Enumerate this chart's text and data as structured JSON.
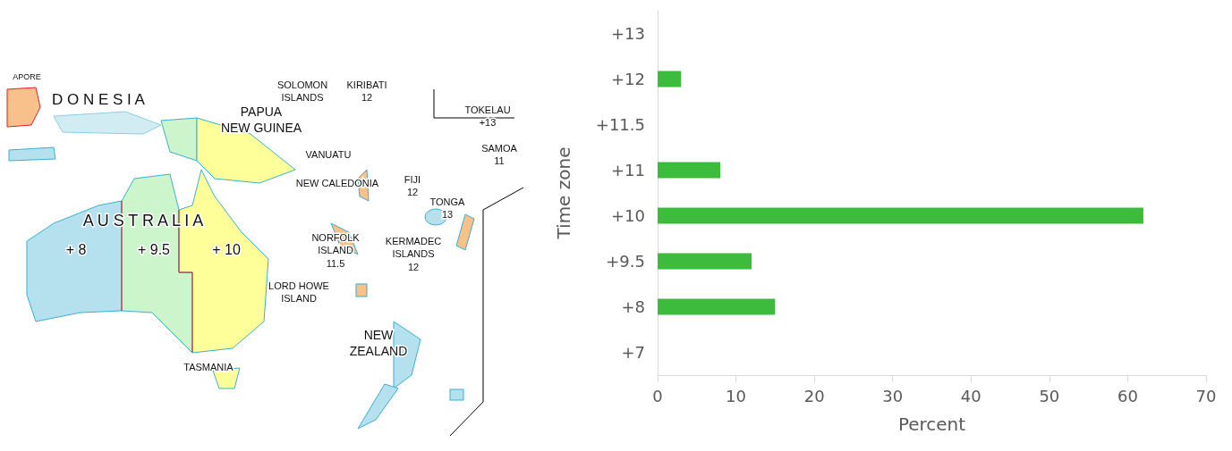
{
  "chart_data": {
    "type": "bar",
    "orientation": "horizontal",
    "xlabel": "Percent",
    "ylabel": "Time zone",
    "categories": [
      "+13",
      "+12",
      "+11.5",
      "+11",
      "+10",
      "+9.5",
      "+8",
      "+7"
    ],
    "values": [
      0,
      3,
      0,
      8,
      62,
      12,
      15,
      0
    ],
    "color": "#3dbb3d",
    "xlim": [
      0,
      70
    ],
    "xticks": [
      0,
      10,
      20,
      30,
      40,
      50,
      60,
      70
    ],
    "grid": false,
    "annotations": [
      "APORE",
      "D O N E S I A",
      "SOLOMON\nISLANDS",
      "KIRIBATI\n12",
      "PAPUA\nNEW GUINEA",
      "TOKELAU\n+13",
      "SAMOA\n11",
      "VANUATU",
      "NEW CALEDONIA",
      "FIJI\n12",
      "TONGA\n13",
      "A U S T R A L I A",
      "+ 8",
      "+ 9.5",
      "+ 10",
      "NORFOLK\nISLAND\n11.5",
      "KERMADEC\nISLANDS\n12",
      "LORD HOWE\nISLAND",
      "NEW\nZEALAND",
      "TASMANIA"
    ]
  }
}
